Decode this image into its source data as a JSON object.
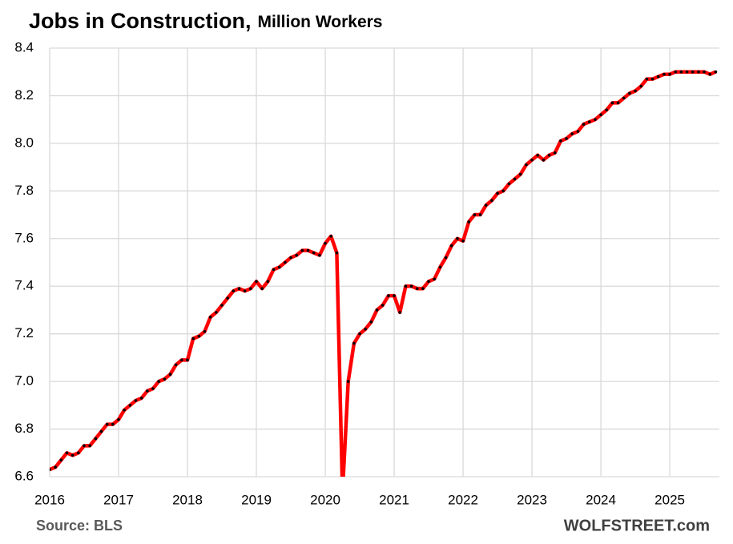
{
  "chart_data": {
    "type": "line",
    "title": "Jobs in Construction,",
    "subtitle": "Million Workers",
    "source": "Source: BLS",
    "credit": "WOLFSTREET.com",
    "x": [
      2016,
      2016.083,
      2016.167,
      2016.25,
      2016.333,
      2016.417,
      2016.5,
      2016.583,
      2016.667,
      2016.75,
      2016.833,
      2016.917,
      2017,
      2017.083,
      2017.167,
      2017.25,
      2017.333,
      2017.417,
      2017.5,
      2017.583,
      2017.667,
      2017.75,
      2017.833,
      2017.917,
      2018,
      2018.083,
      2018.167,
      2018.25,
      2018.333,
      2018.417,
      2018.5,
      2018.583,
      2018.667,
      2018.75,
      2018.833,
      2018.917,
      2019,
      2019.083,
      2019.167,
      2019.25,
      2019.333,
      2019.417,
      2019.5,
      2019.583,
      2019.667,
      2019.75,
      2019.833,
      2019.917,
      2020,
      2020.083,
      2020.167,
      2020.25,
      2020.333,
      2020.417,
      2020.5,
      2020.583,
      2020.667,
      2020.75,
      2020.833,
      2020.917,
      2021,
      2021.083,
      2021.167,
      2021.25,
      2021.333,
      2021.417,
      2021.5,
      2021.583,
      2021.667,
      2021.75,
      2021.833,
      2021.917,
      2022,
      2022.083,
      2022.167,
      2022.25,
      2022.333,
      2022.417,
      2022.5,
      2022.583,
      2022.667,
      2022.75,
      2022.833,
      2022.917,
      2023,
      2023.083,
      2023.167,
      2023.25,
      2023.333,
      2023.417,
      2023.5,
      2023.583,
      2023.667,
      2023.75,
      2023.833,
      2023.917,
      2024,
      2024.083,
      2024.167,
      2024.25,
      2024.333,
      2024.417,
      2024.5,
      2024.583,
      2024.667,
      2024.75,
      2024.833,
      2024.917,
      2025,
      2025.083,
      2025.167,
      2025.25,
      2025.333,
      2025.417,
      2025.5,
      2025.583,
      2025.667
    ],
    "series": [
      {
        "color": "#ff0000",
        "marker_color": "#000000",
        "values": [
          6.63,
          6.64,
          6.67,
          6.7,
          6.69,
          6.7,
          6.73,
          6.73,
          6.76,
          6.79,
          6.82,
          6.82,
          6.84,
          6.88,
          6.9,
          6.92,
          6.93,
          6.96,
          6.97,
          7.0,
          7.01,
          7.03,
          7.07,
          7.09,
          7.09,
          7.18,
          7.19,
          7.21,
          7.27,
          7.29,
          7.32,
          7.35,
          7.38,
          7.39,
          7.38,
          7.39,
          7.42,
          7.39,
          7.42,
          7.47,
          7.48,
          7.5,
          7.52,
          7.53,
          7.55,
          7.55,
          7.54,
          7.53,
          7.58,
          7.61,
          7.54,
          6.53,
          7.0,
          7.16,
          7.2,
          7.22,
          7.25,
          7.3,
          7.32,
          7.36,
          7.36,
          7.29,
          7.4,
          7.4,
          7.39,
          7.39,
          7.42,
          7.43,
          7.48,
          7.52,
          7.57,
          7.6,
          7.59,
          7.67,
          7.7,
          7.7,
          7.74,
          7.76,
          7.79,
          7.8,
          7.83,
          7.85,
          7.87,
          7.91,
          7.93,
          7.95,
          7.93,
          7.95,
          7.96,
          8.01,
          8.02,
          8.04,
          8.05,
          8.08,
          8.09,
          8.1,
          8.12,
          8.14,
          8.17,
          8.17,
          8.19,
          8.21,
          8.22,
          8.24,
          8.27,
          8.27,
          8.28,
          8.29,
          8.29,
          8.3,
          8.3,
          8.3,
          8.3,
          8.3,
          8.3,
          8.29,
          8.3
        ]
      }
    ],
    "xlim": [
      2016,
      2025.72
    ],
    "xticks": [
      2016,
      2017,
      2018,
      2019,
      2020,
      2021,
      2022,
      2023,
      2024,
      2025
    ],
    "ylim": [
      6.6,
      8.4
    ],
    "yticks": [
      6.6,
      6.8,
      {
        "value": 7,
        "label": "7.0"
      },
      7.2,
      7.4,
      7.6,
      7.8,
      {
        "value": 8,
        "label": "8.0"
      },
      8.2,
      8.4
    ],
    "grid": true
  }
}
